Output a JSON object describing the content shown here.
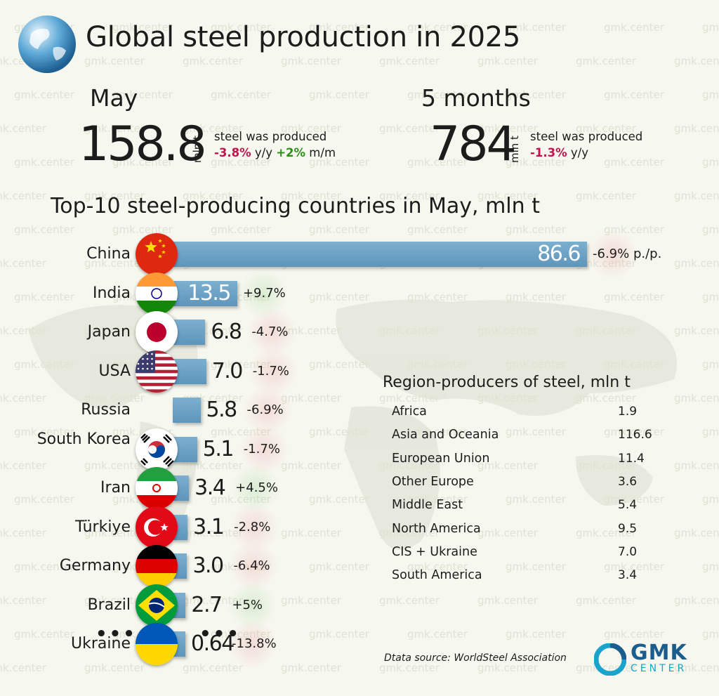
{
  "title": "Global steel production in 2025",
  "watermark": "gmk.center",
  "colors": {
    "bar": "#6aa3c7",
    "negative": "#c2134f",
    "positive": "#2f8d1c"
  },
  "summary": {
    "may": {
      "period": "May",
      "value": "158.8",
      "unit": "mln t",
      "note": "steel was produced",
      "changes": [
        {
          "value": "-3.8%",
          "suffix": " y/y"
        },
        {
          "value": "+2%",
          "suffix": " m/m"
        }
      ]
    },
    "five_months": {
      "period": "5 months",
      "value": "784",
      "unit": "mln t",
      "note": "steel was produced",
      "changes": [
        {
          "value": "-1.3%",
          "suffix": " y/y"
        }
      ]
    }
  },
  "chart_data": [
    {
      "type": "bar",
      "orientation": "horizontal",
      "title": "Top-10 steel-producing countries in May, mln t",
      "categories": [
        "China",
        "India",
        "Japan",
        "USA",
        "Russia",
        "South Korea",
        "Iran",
        "Türkiye",
        "Germany",
        "Brazil",
        "Ukraine"
      ],
      "values": [
        86.6,
        13.5,
        6.8,
        7.0,
        5.8,
        5.1,
        3.4,
        3.1,
        3.0,
        2.7,
        0.64
      ],
      "value_labels": [
        "86.6",
        "13.5",
        "6.8",
        "7.0",
        "5.8",
        "5.1",
        "3.4",
        "3.1",
        "3.0",
        "2.7",
        "0.64"
      ],
      "changes": [
        "-6.9% p./p.",
        "+9.7%",
        "-4.7%",
        "-1.7%",
        "-6.9%",
        "-1.7%",
        "+4.5%",
        "-2.8%",
        "-6.4%",
        "+5%",
        "-13.8%"
      ],
      "flags": [
        "china-flag",
        "india-flag",
        "japan-flag",
        "usa-flag",
        "",
        "south-korea-flag",
        "iran-flag",
        "turkiye-flag",
        "germany-flag",
        "brazil-flag",
        "ukraine-flag"
      ],
      "ellipsis": "•••"
    },
    {
      "type": "table",
      "title": "Region-producers of steel, mln t",
      "rows": [
        {
          "region": "Africa",
          "value": "1.9"
        },
        {
          "region": "Asia and Oceania",
          "value": "116.6"
        },
        {
          "region": "European Union",
          "value": "11.4"
        },
        {
          "region": "Other Europe",
          "value": "3.6"
        },
        {
          "region": "Middle East",
          "value": "5.4"
        },
        {
          "region": "North America",
          "value": "9.5"
        },
        {
          "region": "CIS + Ukraine",
          "value": "7.0"
        },
        {
          "region": "South America",
          "value": "3.4"
        }
      ]
    }
  ],
  "source": "Dtata source: WorldSteel Association",
  "logo": {
    "name": "GMK",
    "sub": "CENTER"
  }
}
